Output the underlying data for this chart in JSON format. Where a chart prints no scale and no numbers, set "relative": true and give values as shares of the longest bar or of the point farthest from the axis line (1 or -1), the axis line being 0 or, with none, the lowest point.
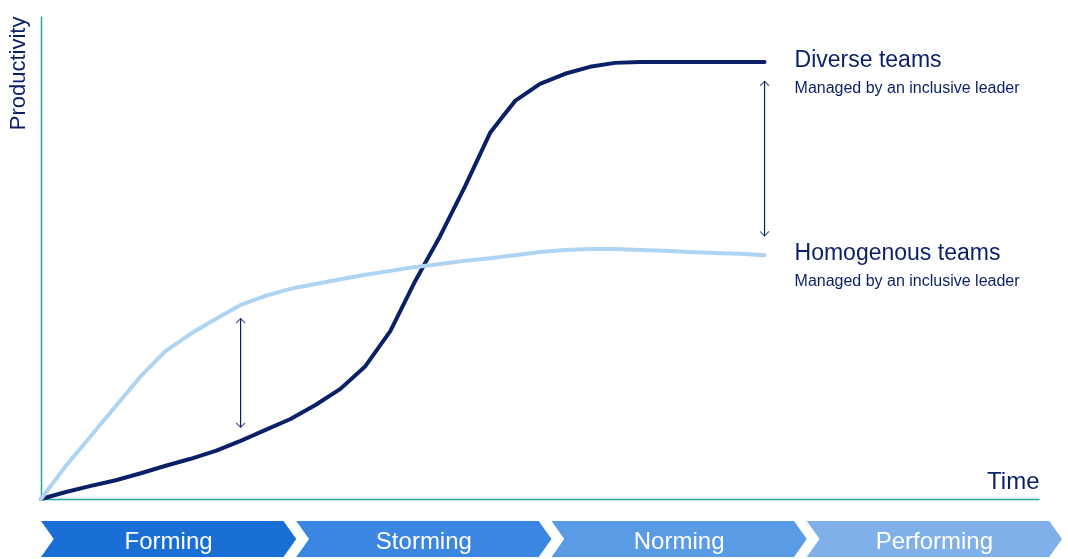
{
  "chart_data": {
    "type": "line",
    "relative": true,
    "xlabel": "Time",
    "ylabel": "Productivity",
    "categories": [
      null,
      null,
      null,
      null,
      null,
      null,
      null,
      null,
      null,
      null,
      null,
      null,
      null,
      null,
      null,
      null,
      null,
      null,
      null,
      null,
      null,
      null,
      null,
      null,
      null,
      null,
      null,
      null,
      null,
      null,
      null,
      null,
      null,
      null,
      null,
      null,
      null,
      null,
      null,
      null,
      null
    ],
    "series": [
      {
        "name": "Diverse teams",
        "color": "#0a1f66",
        "values": [
          0,
          0.016,
          0.03,
          0.043,
          0.059,
          0.076,
          0.092,
          0.11,
          0.133,
          0.158,
          0.183,
          0.215,
          0.252,
          0.304,
          0.384,
          0.499,
          0.602,
          0.716,
          0.838,
          0.911,
          0.95,
          0.973,
          0.989,
          0.998,
          1,
          1,
          1,
          1,
          1,
          1,
          null,
          null,
          null,
          null,
          null,
          null,
          null,
          null,
          null,
          null,
          null
        ]
      },
      {
        "name": "Homogenous teams",
        "color": "#aed4f2",
        "values": [
          0,
          0.076,
          0.144,
          0.213,
          0.281,
          0.339,
          0.378,
          0.412,
          0.444,
          0.465,
          0.481,
          0.492,
          0.503,
          0.513,
          0.522,
          0.531,
          0.538,
          0.545,
          0.551,
          0.558,
          0.565,
          0.57,
          0.572,
          0.572,
          0.57,
          0.568,
          0.565,
          0.563,
          0.561,
          0.558,
          null,
          null,
          null,
          null,
          null,
          null,
          null,
          null,
          null,
          null,
          null
        ]
      }
    ],
    "annotations": [
      "Managed by an inclusive leader",
      "Managed by an inclusive leader",
      "Forming",
      "Storming",
      "Norming",
      "Performing"
    ],
    "grid": false,
    "legend": false,
    "marker": "none",
    "line_style": "solid",
    "tick_labels": false
  }
}
